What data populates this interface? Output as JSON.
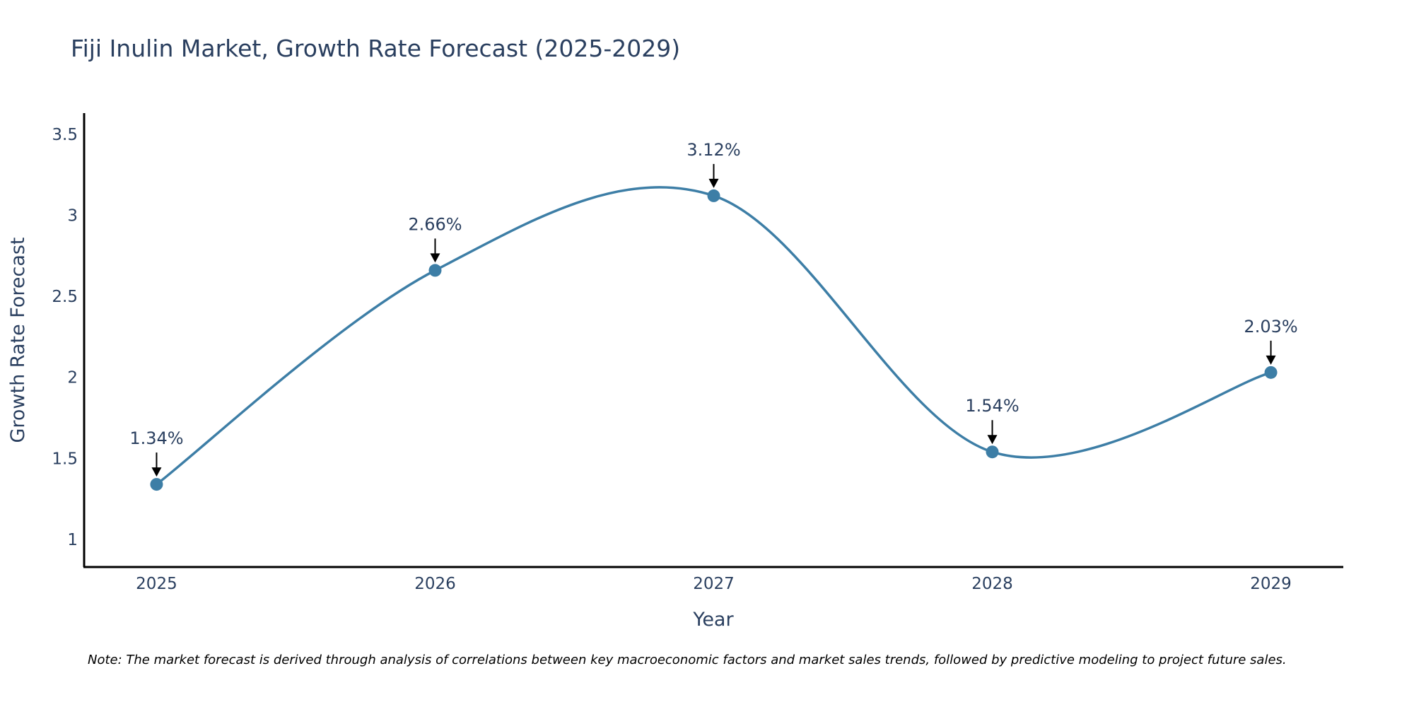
{
  "chart_data": {
    "type": "line",
    "title": "Fiji Inulin Market, Growth Rate Forecast (2025-2029)",
    "xlabel": "Year",
    "ylabel": "Growth Rate Forecast",
    "categories": [
      "2025",
      "2026",
      "2027",
      "2028",
      "2029"
    ],
    "values": [
      1.34,
      2.66,
      3.12,
      1.54,
      2.03
    ],
    "data_labels": [
      "1.34%",
      "2.66%",
      "3.12%",
      "1.54%",
      "2.03%"
    ],
    "yticks": [
      1,
      1.5,
      2,
      2.5,
      3,
      3.5
    ],
    "ytick_labels": [
      "1",
      "1.5",
      "2",
      "2.5",
      "3",
      "3.5"
    ],
    "xlim": [
      2024.74,
      2029.26
    ],
    "ylim": [
      0.83,
      3.63
    ],
    "line_shape": "spline",
    "grid": false,
    "legend": "none",
    "line_color": "#3d7ea6",
    "marker_color": "#3d7ea6",
    "note": "Note: The market forecast is derived through analysis of correlations between key macroeconomic factors and market sales trends, followed by predictive modeling to project future sales."
  }
}
